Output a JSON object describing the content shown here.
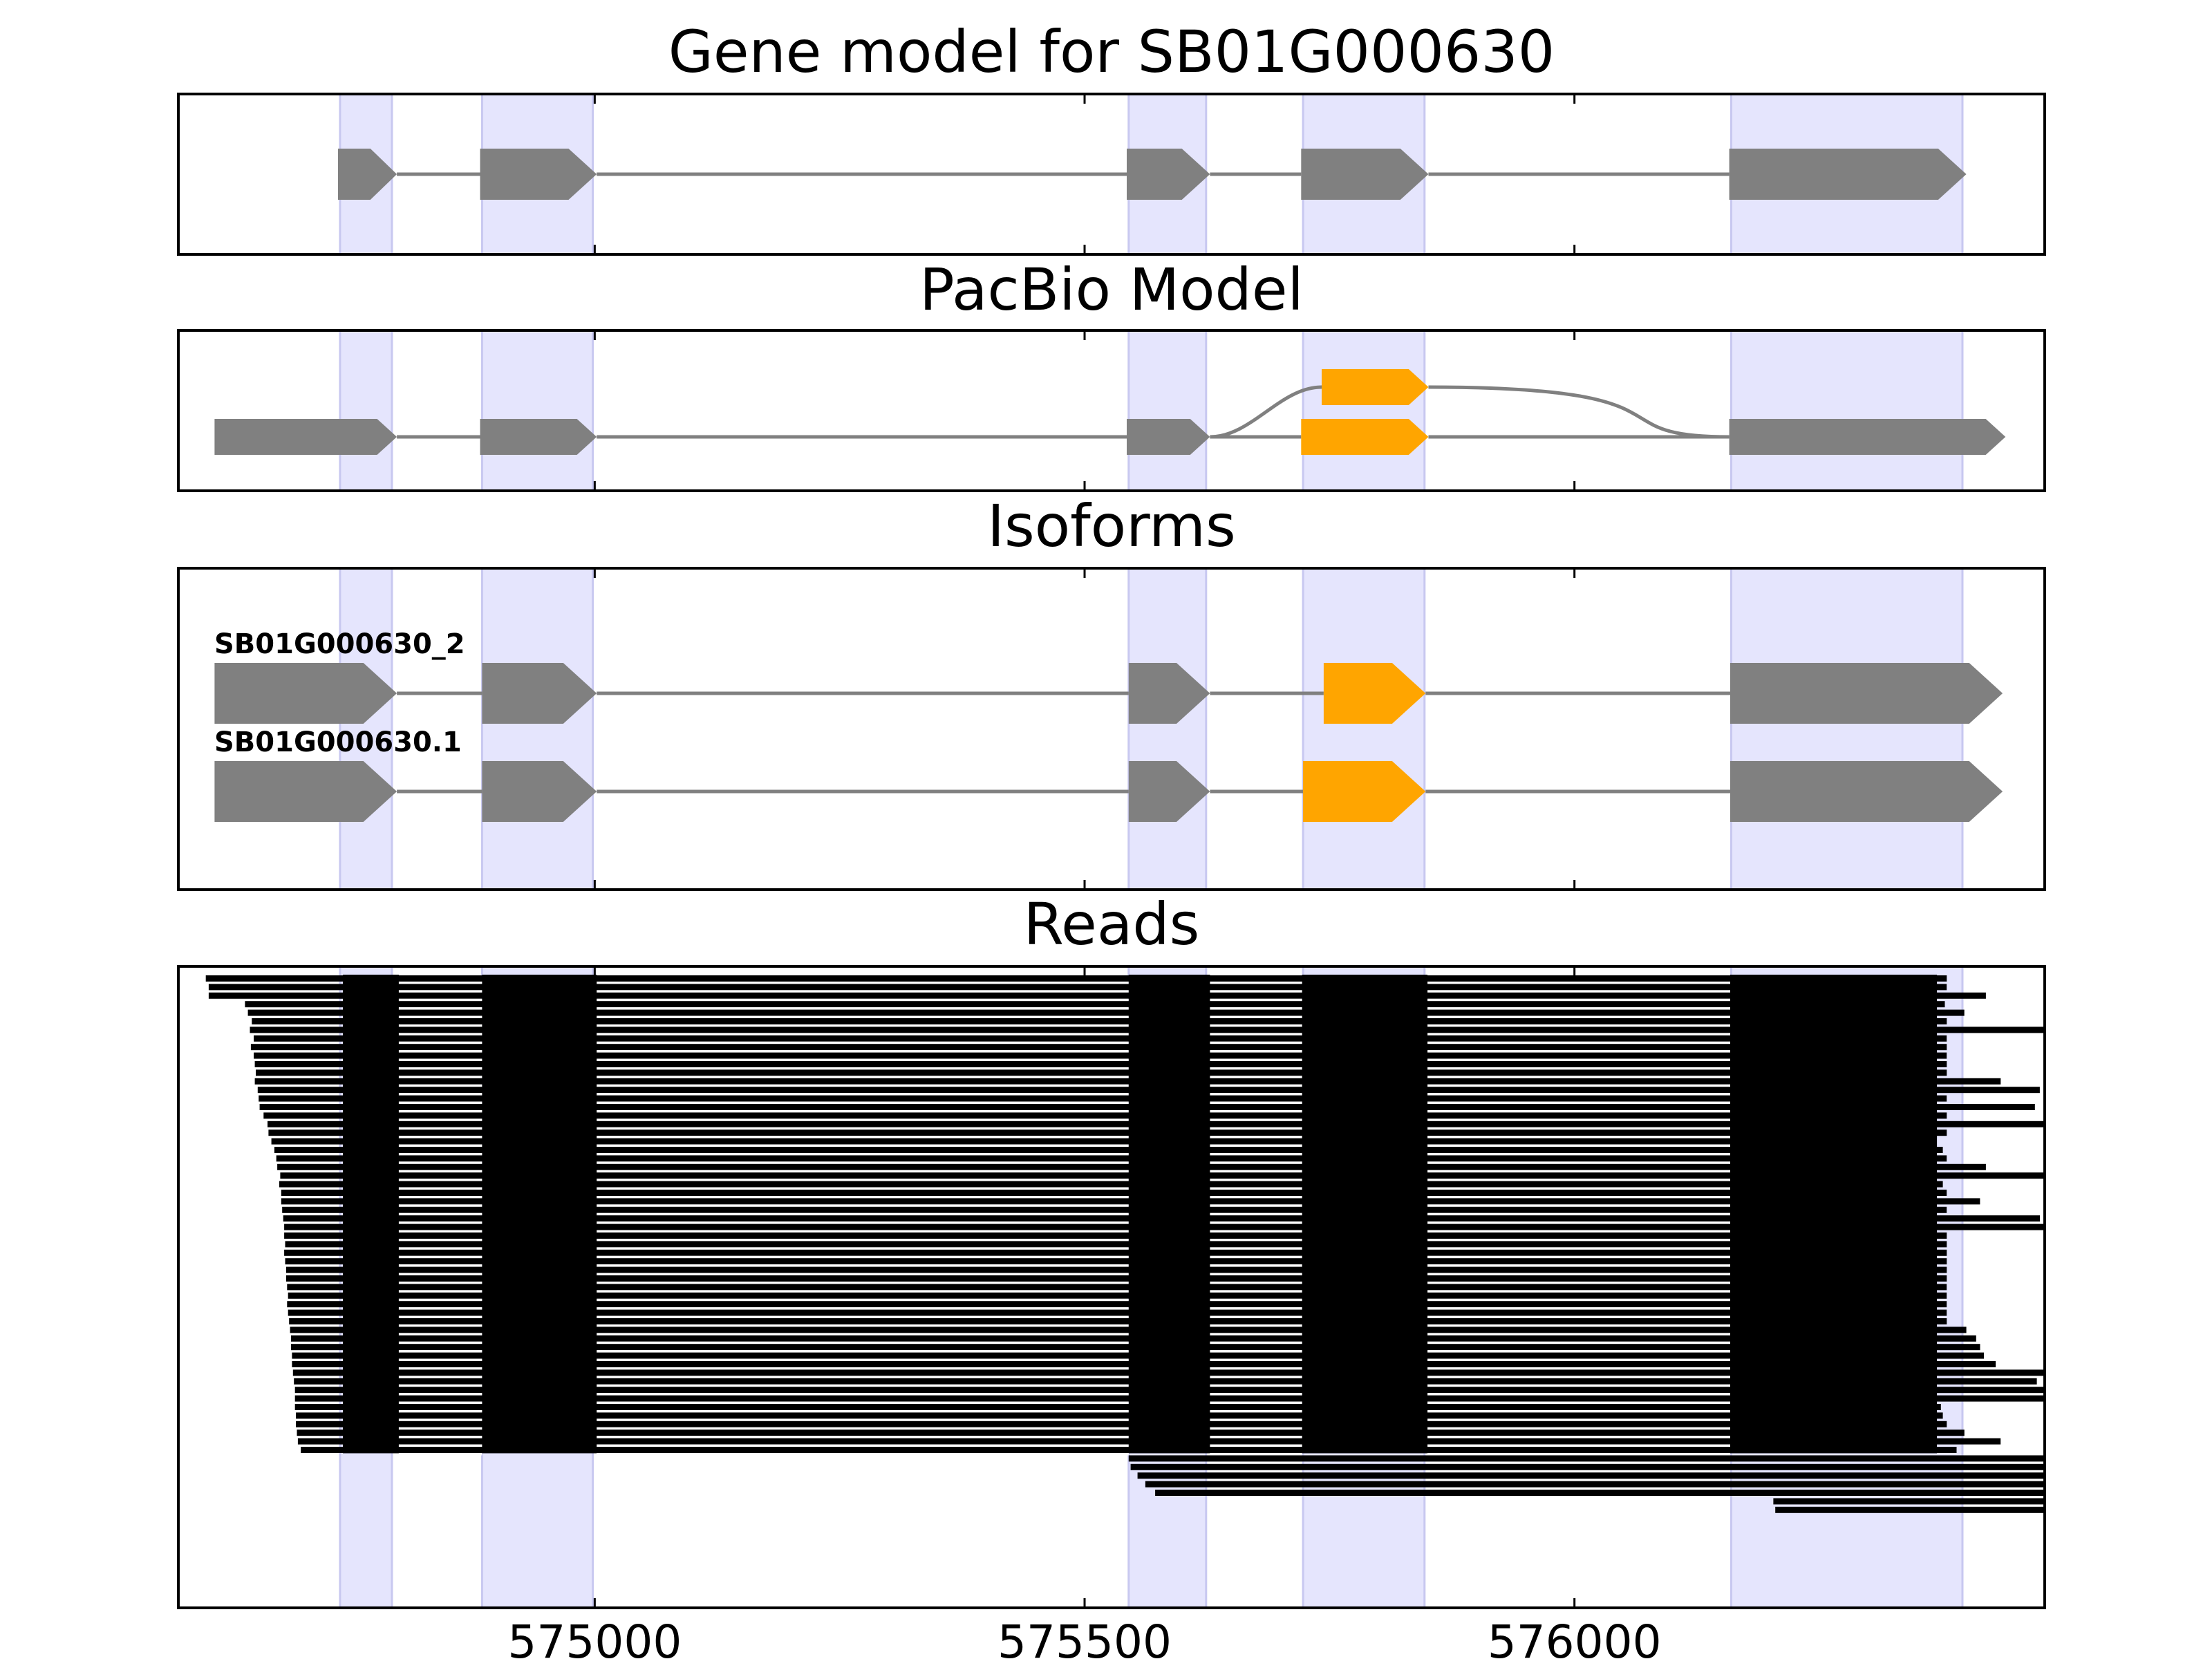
{
  "colors": {
    "exon": "#808080",
    "alt_exon": "#FFA500",
    "highlight": "#E5E5FD",
    "highlight_edge": "#C8C8F0",
    "read": "#000000",
    "intron": "#808080",
    "axis": "#000000"
  },
  "chart_data": {
    "type": "gene-model-tracks",
    "xlim": [
      574575,
      576480
    ],
    "ticks": [
      575000,
      575500,
      576000
    ],
    "tick_labels": [
      "575000",
      "575500",
      "576000"
    ],
    "highlight_regions": [
      [
        574740,
        574793
      ],
      [
        574885,
        574998
      ],
      [
        575545,
        575624
      ],
      [
        575723,
        575847
      ],
      [
        576160,
        576396
      ]
    ],
    "panels": [
      {
        "id": "gene-model",
        "title": "Gene model for SB01G000630",
        "rows": [
          {
            "label": "",
            "exons": [
              [
                574738,
                574798,
                "gray"
              ],
              [
                574883,
                575002,
                "gray"
              ],
              [
                575543,
                575628,
                "gray"
              ],
              [
                575721,
                575851,
                "gray"
              ],
              [
                576158,
                576400,
                "gray"
              ]
            ]
          }
        ]
      },
      {
        "id": "pacbio-model",
        "title": "PacBio Model",
        "rows": [
          {
            "label": "",
            "exons": [
              [
                574612,
                574798,
                "gray"
              ],
              [
                574883,
                575002,
                "gray"
              ],
              [
                575543,
                575628,
                "gray"
              ],
              [
                575721,
                575851,
                "orange"
              ],
              [
                576158,
                576440,
                "gray"
              ]
            ]
          },
          {
            "label": "",
            "exons": [
              [
                575742,
                575851,
                "orange"
              ]
            ]
          }
        ]
      },
      {
        "id": "isoforms",
        "title": "Isoforms",
        "rows": [
          {
            "label": "SB01G000630_2",
            "exons": [
              [
                574612,
                574798,
                "gray"
              ],
              [
                574885,
                575002,
                "gray"
              ],
              [
                575545,
                575628,
                "gray"
              ],
              [
                575744,
                575848,
                "orange"
              ],
              [
                576159,
                576437,
                "gray"
              ]
            ]
          },
          {
            "label": "SB01G000630.1",
            "exons": [
              [
                574612,
                574798,
                "gray"
              ],
              [
                574885,
                575002,
                "gray"
              ],
              [
                575545,
                575628,
                "gray"
              ],
              [
                575723,
                575848,
                "orange"
              ],
              [
                576159,
                576437,
                "gray"
              ]
            ]
          }
        ]
      },
      {
        "id": "reads",
        "title": "Reads",
        "read_count": 56,
        "read_blocks": [
          [
            574800,
            574885
          ],
          [
            575002,
            575545
          ],
          [
            575628,
            575722
          ],
          [
            575850,
            576159
          ]
        ],
        "read_starts": [
          574603,
          574606,
          574606,
          574643,
          574646,
          574650,
          574648,
          574652,
          574649,
          574652,
          574653,
          574654,
          574653,
          574656,
          574657,
          574658,
          574662,
          574666,
          574667,
          574670,
          574673,
          574675,
          574676,
          574679,
          574678,
          574680,
          574680,
          574681,
          574682,
          574683,
          574683,
          574684,
          574683,
          574684,
          574685,
          574685,
          574686,
          574687,
          574686,
          574687,
          574688,
          574689,
          574690,
          574690,
          574691,
          574691,
          574692,
          574693,
          574694,
          574694,
          574694,
          574695,
          574695,
          574696,
          574697,
          574700
        ],
        "read_ends": [
          576380,
          576380,
          576420,
          576378,
          576398,
          576380,
          576480,
          576380,
          576380,
          576380,
          576380,
          576380,
          576435,
          576475,
          576380,
          576470,
          576380,
          576485,
          576380,
          576360,
          576376,
          576380,
          576420,
          576485,
          576376,
          576380,
          576414,
          576380,
          576475,
          576480,
          576380,
          576380,
          576380,
          576380,
          576380,
          576380,
          576380,
          576380,
          576380,
          576380,
          576380,
          576400,
          576410,
          576414,
          576418,
          576430,
          576480,
          576472,
          576485,
          576480,
          576374,
          576376,
          576380,
          576398,
          576435,
          576390
        ],
        "extra_reads": [
          {
            "start": 575545,
            "end": 576480
          },
          {
            "start": 575547,
            "end": 576480
          },
          {
            "start": 575554,
            "end": 576480
          },
          {
            "start": 575562,
            "end": 576480
          },
          {
            "start": 575572,
            "end": 576480
          },
          {
            "start": 576203,
            "end": 576480
          },
          {
            "start": 576205,
            "end": 576480
          }
        ],
        "extra_read_breaks": [
          575628,
          575722,
          575850,
          576159
        ]
      }
    ]
  }
}
